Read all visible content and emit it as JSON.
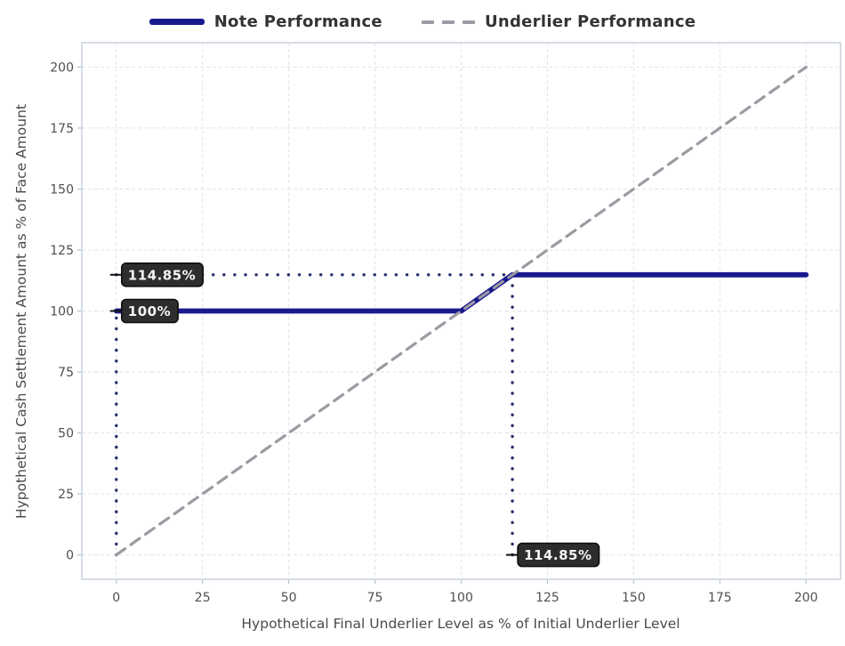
{
  "chart_data": {
    "type": "line",
    "title": "",
    "xlabel": "Hypothetical Final Underlier Level as % of Initial Underlier Level",
    "ylabel": "Hypothetical Cash Settlement Amount as % of Face Amount",
    "xlim": [
      -10,
      210
    ],
    "ylim": [
      -10,
      210
    ],
    "xticks": [
      0,
      25,
      50,
      75,
      100,
      125,
      150,
      175,
      200
    ],
    "yticks": [
      0,
      25,
      50,
      75,
      100,
      125,
      150,
      175,
      200
    ],
    "grid": true,
    "legend_position": "top-center",
    "series": [
      {
        "name": "Note Performance",
        "color": "#1a1a8f",
        "width": 5.8,
        "dash": "none",
        "points": [
          [
            0,
            100
          ],
          [
            100,
            100
          ],
          [
            114.85,
            114.85
          ],
          [
            200,
            114.85
          ]
        ]
      },
      {
        "name": "Underlier Performance",
        "color": "#9b9ba3",
        "width": 3.2,
        "dash": "12 8",
        "points": [
          [
            0,
            0
          ],
          [
            200,
            200
          ]
        ]
      }
    ],
    "guides": [
      {
        "type": "v",
        "x": 0,
        "y1": 0,
        "y2": 100
      },
      {
        "type": "h",
        "y": 114.85,
        "x1": 0,
        "x2": 114.85
      },
      {
        "type": "v",
        "x": 114.85,
        "y1": 0,
        "y2": 114.85
      }
    ],
    "annotations": [
      {
        "text": "114.85%",
        "x": 0,
        "y": 114.85
      },
      {
        "text": "100%",
        "x": 0,
        "y": 100
      },
      {
        "text": "114.85%",
        "x": 114.85,
        "y": 0
      }
    ],
    "colors": {
      "note_line": "#1a1a8f",
      "underlier_line": "#9b9ba3",
      "guide_dots": "#25306b",
      "grid": "#e3e3e3",
      "spine": "#b9c4d1",
      "tick_label": "#4f4f4f",
      "axis_title": "#4a4a4a",
      "legend_text": "#333333",
      "annotation_bg": "#2d2d2d",
      "annotation_border": "#0f0f0f",
      "annotation_text": "#f5f5f5",
      "leader": "#111111",
      "background": "#ffffff"
    }
  }
}
